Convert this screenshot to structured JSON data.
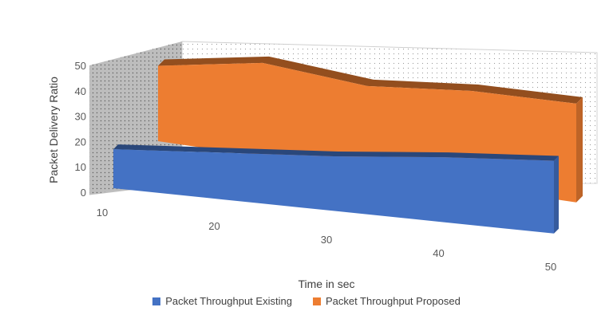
{
  "chart_data": {
    "type": "area",
    "title": "",
    "xlabel": "Time in sec",
    "ylabel": "Packet Delivery Ratio",
    "x": [
      10,
      20,
      30,
      40,
      50
    ],
    "x_tick_labels": [
      "10",
      "20",
      "30",
      "40",
      "50"
    ],
    "y_tick_labels": [
      "0",
      "10",
      "20",
      "30",
      "40",
      "50"
    ],
    "ylim": [
      0,
      50
    ],
    "three_d": true,
    "grid": false,
    "legend_position": "bottom",
    "series": [
      {
        "name": "Packet Throughput Existing",
        "color": "#4472C4",
        "values": [
          15,
          18,
          21,
          25,
          28
        ]
      },
      {
        "name": "Packet Throughput Proposed",
        "color": "#ED7D31",
        "values": [
          29,
          36,
          33,
          37,
          38
        ]
      }
    ]
  }
}
